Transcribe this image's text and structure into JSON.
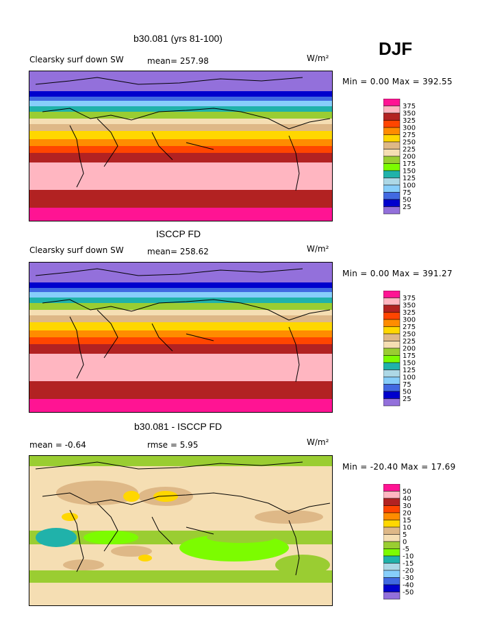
{
  "season_label": "DJF",
  "panels": [
    {
      "title": "b30.081 (yrs 81-100)",
      "field_label": "Clearsky surf down SW",
      "mean_label": "mean= 257.98",
      "units": "W/m²",
      "stats": "Min =    0.00 Max = 392.55",
      "legend_levels": [
        "375",
        "350",
        "325",
        "300",
        "275",
        "250",
        "225",
        "200",
        "175",
        "150",
        "125",
        "100",
        "75",
        "50",
        "25"
      ],
      "legend_colors": [
        "#ff1493",
        "#ffb6c1",
        "#b22222",
        "#ff4500",
        "#ff8c00",
        "#ffd700",
        "#deb887",
        "#f5deb3",
        "#9acd32",
        "#7cfc00",
        "#20b2aa",
        "#add8e6",
        "#87cefa",
        "#4169e1",
        "#0000cd",
        "#9370db"
      ]
    },
    {
      "title": "ISCCP FD",
      "field_label": "Clearsky surf down SW",
      "mean_label": "mean= 258.62",
      "units": "W/m²",
      "stats": "Min =    0.00 Max = 391.27",
      "legend_levels": [
        "375",
        "350",
        "325",
        "300",
        "275",
        "250",
        "225",
        "200",
        "175",
        "150",
        "125",
        "100",
        "75",
        "50",
        "25"
      ],
      "legend_colors": [
        "#ff1493",
        "#ffb6c1",
        "#b22222",
        "#ff4500",
        "#ff8c00",
        "#ffd700",
        "#deb887",
        "#f5deb3",
        "#9acd32",
        "#7cfc00",
        "#20b2aa",
        "#add8e6",
        "#87cefa",
        "#4169e1",
        "#0000cd",
        "#9370db"
      ]
    },
    {
      "title": "b30.081 - ISCCP FD",
      "mean_label": "mean =   -0.64",
      "rmse_label": "rmse =    5.95",
      "units": "W/m²",
      "stats": "Min = -20.40 Max =  17.69",
      "legend_levels": [
        "50",
        "40",
        "30",
        "20",
        "15",
        "10",
        "5",
        "0",
        "-5",
        "-10",
        "-15",
        "-20",
        "-30",
        "-40",
        "-50"
      ],
      "legend_colors": [
        "#ff1493",
        "#ffb6c1",
        "#b22222",
        "#ff4500",
        "#ff8c00",
        "#ffd700",
        "#deb887",
        "#f5deb3",
        "#9acd32",
        "#7cfc00",
        "#20b2aa",
        "#add8e6",
        "#87cefa",
        "#4169e1",
        "#0000cd",
        "#9370db"
      ]
    }
  ]
}
